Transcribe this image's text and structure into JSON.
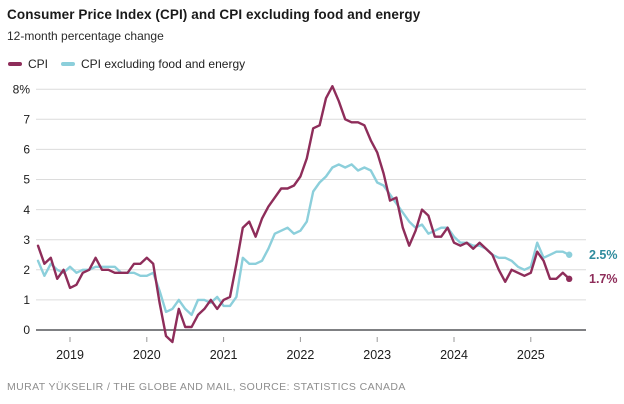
{
  "header": {
    "title": "Consumer Price Index (CPI) and CPI excluding food and energy",
    "subtitle": "12-month percentage change"
  },
  "legend": [
    {
      "label": "CPI",
      "color": "#8e2d5a"
    },
    {
      "label": "CPI excluding food and energy",
      "color": "#8ccfdb"
    }
  ],
  "chart_data": {
    "type": "line",
    "title": "Consumer Price Index (CPI) and CPI excluding food and energy",
    "subtitle": "12-month percentage change",
    "x": {
      "start": "2018-08",
      "end": "2025-07",
      "freq": "monthly",
      "count": 84
    },
    "x_tick_labels": [
      "2019",
      "2020",
      "2021",
      "2022",
      "2023",
      "2024",
      "2025"
    ],
    "y_axis": {
      "ticks": [
        0,
        1,
        2,
        3,
        4,
        5,
        6,
        7,
        8
      ],
      "tick_labels": [
        "0",
        "1",
        "2",
        "3",
        "4",
        "5",
        "6",
        "7",
        "8%"
      ],
      "range": [
        -0.5,
        8.3
      ],
      "unit": "percent"
    },
    "grid": "horizontal",
    "legend_position": "top-left",
    "series": [
      {
        "name": "CPI",
        "color": "#8e2d5a",
        "end_label": "1.7%",
        "end_label_color": "#8e2d5a",
        "values": [
          2.8,
          2.2,
          2.4,
          1.7,
          2.0,
          1.4,
          1.5,
          1.9,
          2.0,
          2.4,
          2.0,
          2.0,
          1.9,
          1.9,
          1.9,
          2.2,
          2.2,
          2.4,
          2.2,
          0.9,
          -0.2,
          -0.4,
          0.7,
          0.1,
          0.1,
          0.5,
          0.7,
          1.0,
          0.7,
          1.0,
          1.1,
          2.2,
          3.4,
          3.6,
          3.1,
          3.7,
          4.1,
          4.4,
          4.7,
          4.7,
          4.8,
          5.1,
          5.7,
          6.7,
          6.8,
          7.7,
          8.1,
          7.6,
          7.0,
          6.9,
          6.9,
          6.8,
          6.3,
          5.9,
          5.2,
          4.3,
          4.4,
          3.4,
          2.8,
          3.3,
          4.0,
          3.8,
          3.1,
          3.1,
          3.4,
          2.9,
          2.8,
          2.9,
          2.7,
          2.9,
          2.7,
          2.5,
          2.0,
          1.6,
          2.0,
          1.9,
          1.8,
          1.9,
          2.6,
          2.3,
          1.7,
          1.7,
          1.9,
          1.7
        ]
      },
      {
        "name": "CPI excluding food and energy",
        "color": "#8ccfdb",
        "end_label": "2.5%",
        "end_label_color": "#2e8b9d",
        "values": [
          2.3,
          1.8,
          2.2,
          2.0,
          1.9,
          2.1,
          1.9,
          2.0,
          2.0,
          2.1,
          2.1,
          2.1,
          2.1,
          1.9,
          1.9,
          1.9,
          1.8,
          1.8,
          1.9,
          1.3,
          0.6,
          0.7,
          1.0,
          0.7,
          0.5,
          1.0,
          1.0,
          0.9,
          1.1,
          0.8,
          0.8,
          1.1,
          2.4,
          2.2,
          2.2,
          2.3,
          2.7,
          3.2,
          3.3,
          3.4,
          3.2,
          3.3,
          3.6,
          4.6,
          4.9,
          5.1,
          5.4,
          5.5,
          5.4,
          5.5,
          5.3,
          5.4,
          5.3,
          4.9,
          4.8,
          4.5,
          4.2,
          3.9,
          3.6,
          3.4,
          3.5,
          3.2,
          3.3,
          3.4,
          3.4,
          3.1,
          2.9,
          2.9,
          2.8,
          2.8,
          2.7,
          2.5,
          2.4,
          2.4,
          2.3,
          2.1,
          2.0,
          2.1,
          2.9,
          2.4,
          2.5,
          2.6,
          2.6,
          2.5
        ]
      }
    ]
  },
  "footer": {
    "credit": "MURAT YÜKSELIR / THE GLOBE AND MAIL, SOURCE: STATISTICS CANADA"
  }
}
